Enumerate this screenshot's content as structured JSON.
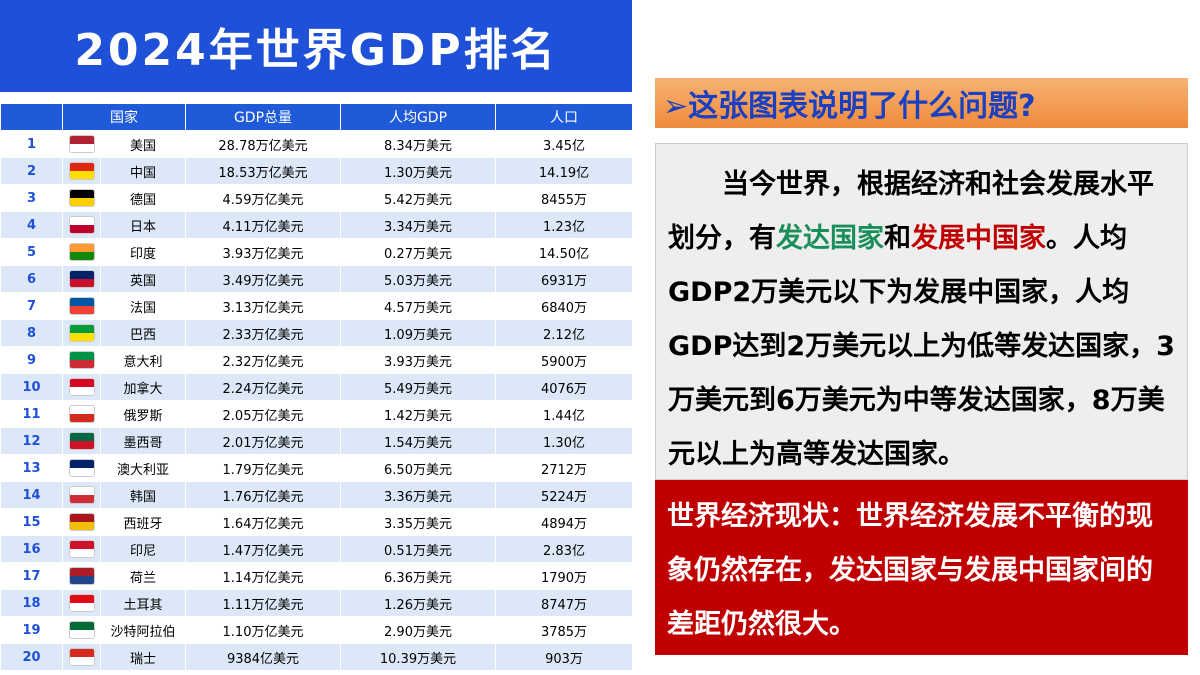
{
  "header": {
    "title": "2024年世界GDP排名"
  },
  "table": {
    "columns": [
      "国家",
      "GDP总量",
      "人均GDP",
      "人口"
    ],
    "rows": [
      [
        "1",
        "美国",
        "28.78万亿美元",
        "8.34万美元",
        "3.45亿"
      ],
      [
        "2",
        "中国",
        "18.53万亿美元",
        "1.30万美元",
        "14.19亿"
      ],
      [
        "3",
        "德国",
        "4.59万亿美元",
        "5.42万美元",
        "8455万"
      ],
      [
        "4",
        "日本",
        "4.11万亿美元",
        "3.34万美元",
        "1.23亿"
      ],
      [
        "5",
        "印度",
        "3.93万亿美元",
        "0.27万美元",
        "14.50亿"
      ],
      [
        "6",
        "英国",
        "3.49万亿美元",
        "5.03万美元",
        "6931万"
      ],
      [
        "7",
        "法国",
        "3.13万亿美元",
        "4.57万美元",
        "6840万"
      ],
      [
        "8",
        "巴西",
        "2.33万亿美元",
        "1.09万美元",
        "2.12亿"
      ],
      [
        "9",
        "意大利",
        "2.32万亿美元",
        "3.93万美元",
        "5900万"
      ],
      [
        "10",
        "加拿大",
        "2.24万亿美元",
        "5.49万美元",
        "4076万"
      ],
      [
        "11",
        "俄罗斯",
        "2.05万亿美元",
        "1.42万美元",
        "1.44亿"
      ],
      [
        "12",
        "墨西哥",
        "2.01万亿美元",
        "1.54万美元",
        "1.30亿"
      ],
      [
        "13",
        "澳大利亚",
        "1.79万亿美元",
        "6.50万美元",
        "2712万"
      ],
      [
        "14",
        "韩国",
        "1.76万亿美元",
        "3.36万美元",
        "5224万"
      ],
      [
        "15",
        "西班牙",
        "1.64万亿美元",
        "3.35万美元",
        "4894万"
      ],
      [
        "16",
        "印尼",
        "1.47万亿美元",
        "0.51万美元",
        "2.83亿"
      ],
      [
        "17",
        "荷兰",
        "1.14万亿美元",
        "6.36万美元",
        "1790万"
      ],
      [
        "18",
        "土耳其",
        "1.11万亿美元",
        "1.26万美元",
        "8747万"
      ],
      [
        "19",
        "沙特阿拉伯",
        "1.10万亿美元",
        "2.90万美元",
        "3785万"
      ],
      [
        "20",
        "瑞士",
        "9384亿美元",
        "10.39万美元",
        "903万"
      ]
    ]
  },
  "question": {
    "title": "➢这张图表说明了什么问题?"
  },
  "explanation": {
    "parts": [
      "当今世界，根据经济和社会发展水平划分，有",
      "发达国家",
      "和",
      "发展中国家",
      "。人均GDP2万美元以下为发展中国家，人均GDP达到2万美元以上为低等发达国家，3万美元到6万美元为中等发达国家，8万美元以上为高等发达国家。"
    ]
  },
  "conclusion": {
    "text": "世界经济现状：世界经济发展不平衡的现象仍然存在，发达国家与发展中国家间的差距仍然很大。"
  }
}
